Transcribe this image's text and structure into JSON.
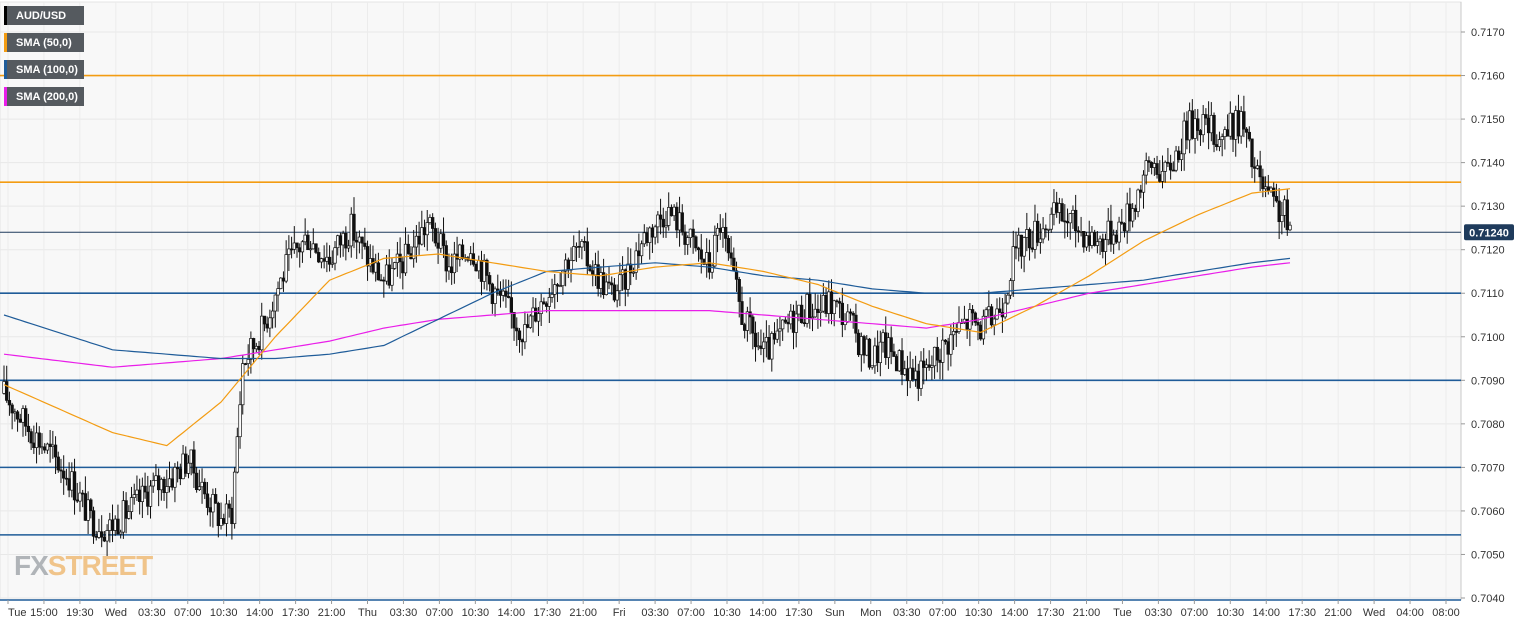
{
  "chart_data": {
    "type": "candlestick",
    "symbol": "AUD/USD",
    "legend": [
      {
        "label": "AUD/USD",
        "color": "#000000"
      },
      {
        "label": "SMA (50,0)",
        "color": "#f39c12"
      },
      {
        "label": "SMA (100,0)",
        "color": "#1f5c99"
      },
      {
        "label": "SMA (200,0)",
        "color": "#e91ee9"
      }
    ],
    "ylim": [
      0.704,
      0.7175
    ],
    "y_ticks": [
      "0.7170",
      "0.7160",
      "0.7150",
      "0.7140",
      "0.7130",
      "0.7120",
      "0.7110",
      "0.7100",
      "0.7090",
      "0.7080",
      "0.7070",
      "0.7060",
      "0.7050",
      "0.7040"
    ],
    "x_ticks": [
      "Tue",
      "15:00",
      "19:30",
      "Wed",
      "03:30",
      "07:00",
      "10:30",
      "14:00",
      "17:30",
      "21:00",
      "Thu",
      "03:30",
      "07:00",
      "10:30",
      "14:00",
      "17:30",
      "21:00",
      "Fri",
      "03:30",
      "07:00",
      "10:30",
      "14:00",
      "17:30",
      "Sun",
      "Mon",
      "03:30",
      "07:00",
      "10:30",
      "14:00",
      "17:30",
      "21:00",
      "Tue",
      "03:30",
      "07:00",
      "10:30",
      "14:00",
      "17:30",
      "21:00",
      "Wed",
      "04:00",
      "08:00"
    ],
    "last_price": "0.71240",
    "last_price_value": 0.7124,
    "levels": [
      {
        "value": 0.716,
        "color": "#f39c12"
      },
      {
        "value": 0.71355,
        "color": "#f39c12"
      },
      {
        "value": 0.711,
        "color": "#1f5c99"
      },
      {
        "value": 0.709,
        "color": "#1f5c99"
      },
      {
        "value": 0.707,
        "color": "#1f5c99"
      },
      {
        "value": 0.70545,
        "color": "#1f5c99"
      }
    ],
    "price_path": [
      [
        0,
        0.7087
      ],
      [
        8,
        0.708
      ],
      [
        16,
        0.7074
      ],
      [
        24,
        0.7068
      ],
      [
        32,
        0.7058
      ],
      [
        38,
        0.7056
      ],
      [
        46,
        0.706
      ],
      [
        54,
        0.7065
      ],
      [
        62,
        0.7068
      ],
      [
        68,
        0.7072
      ],
      [
        74,
        0.7064
      ],
      [
        80,
        0.7058
      ],
      [
        84,
        0.706
      ],
      [
        88,
        0.7094
      ],
      [
        92,
        0.7098
      ],
      [
        96,
        0.7103
      ],
      [
        100,
        0.711
      ],
      [
        104,
        0.7116
      ],
      [
        108,
        0.712
      ],
      [
        112,
        0.7123
      ],
      [
        116,
        0.712
      ],
      [
        120,
        0.7118
      ],
      [
        124,
        0.7122
      ],
      [
        128,
        0.7125
      ],
      [
        132,
        0.712
      ],
      [
        136,
        0.7116
      ],
      [
        140,
        0.7113
      ],
      [
        144,
        0.7115
      ],
      [
        148,
        0.7118
      ],
      [
        152,
        0.7122
      ],
      [
        156,
        0.7126
      ],
      [
        160,
        0.7122
      ],
      [
        164,
        0.7116
      ],
      [
        168,
        0.7118
      ],
      [
        172,
        0.7121
      ],
      [
        176,
        0.7116
      ],
      [
        180,
        0.7111
      ],
      [
        184,
        0.7108
      ],
      [
        188,
        0.7104
      ],
      [
        192,
        0.7101
      ],
      [
        196,
        0.7106
      ],
      [
        200,
        0.711
      ],
      [
        204,
        0.7114
      ],
      [
        208,
        0.7118
      ],
      [
        212,
        0.712
      ],
      [
        216,
        0.7117
      ],
      [
        220,
        0.7113
      ],
      [
        224,
        0.711
      ],
      [
        228,
        0.7112
      ],
      [
        232,
        0.7118
      ],
      [
        236,
        0.7123
      ],
      [
        240,
        0.7126
      ],
      [
        244,
        0.7129
      ],
      [
        248,
        0.7127
      ],
      [
        252,
        0.7123
      ],
      [
        256,
        0.7119
      ],
      [
        260,
        0.7116
      ],
      [
        264,
        0.7126
      ],
      [
        268,
        0.7115
      ],
      [
        272,
        0.7105
      ],
      [
        276,
        0.71
      ],
      [
        280,
        0.7096
      ],
      [
        284,
        0.7098
      ],
      [
        288,
        0.7102
      ],
      [
        292,
        0.7105
      ],
      [
        296,
        0.7107
      ],
      [
        300,
        0.7106
      ],
      [
        304,
        0.7108
      ],
      [
        308,
        0.7106
      ],
      [
        312,
        0.7103
      ],
      [
        316,
        0.7098
      ],
      [
        320,
        0.7095
      ],
      [
        324,
        0.7098
      ],
      [
        328,
        0.7096
      ],
      [
        332,
        0.7093
      ],
      [
        336,
        0.7091
      ],
      [
        340,
        0.7092
      ],
      [
        344,
        0.7096
      ],
      [
        348,
        0.7099
      ],
      [
        352,
        0.7102
      ],
      [
        356,
        0.7104
      ],
      [
        360,
        0.7102
      ],
      [
        364,
        0.7104
      ],
      [
        368,
        0.7108
      ],
      [
        372,
        0.7118
      ],
      [
        376,
        0.7122
      ],
      [
        380,
        0.7124
      ],
      [
        384,
        0.7126
      ],
      [
        388,
        0.7128
      ],
      [
        392,
        0.7127
      ],
      [
        396,
        0.7125
      ],
      [
        400,
        0.7123
      ],
      [
        404,
        0.7122
      ],
      [
        408,
        0.7124
      ],
      [
        412,
        0.7126
      ],
      [
        416,
        0.713
      ],
      [
        420,
        0.7137
      ],
      [
        424,
        0.714
      ],
      [
        428,
        0.7137
      ],
      [
        432,
        0.7142
      ],
      [
        436,
        0.7148
      ],
      [
        440,
        0.715
      ],
      [
        444,
        0.7148
      ],
      [
        448,
        0.7146
      ],
      [
        452,
        0.7148
      ],
      [
        456,
        0.715
      ],
      [
        460,
        0.714
      ],
      [
        464,
        0.7134
      ],
      [
        468,
        0.713
      ],
      [
        472,
        0.7128
      ],
      [
        474,
        0.7124
      ]
    ],
    "sma_50": [
      [
        0,
        0.7089
      ],
      [
        40,
        0.7078
      ],
      [
        60,
        0.7075
      ],
      [
        80,
        0.7085
      ],
      [
        100,
        0.71
      ],
      [
        120,
        0.7113
      ],
      [
        140,
        0.7118
      ],
      [
        160,
        0.7119
      ],
      [
        180,
        0.7117
      ],
      [
        200,
        0.7115
      ],
      [
        220,
        0.7114
      ],
      [
        240,
        0.7116
      ],
      [
        260,
        0.7117
      ],
      [
        280,
        0.7115
      ],
      [
        300,
        0.7112
      ],
      [
        320,
        0.7107
      ],
      [
        340,
        0.7103
      ],
      [
        360,
        0.7101
      ],
      [
        380,
        0.7107
      ],
      [
        400,
        0.7114
      ],
      [
        420,
        0.7122
      ],
      [
        440,
        0.7128
      ],
      [
        460,
        0.7133
      ],
      [
        474,
        0.7134
      ]
    ],
    "sma_100": [
      [
        0,
        0.7105
      ],
      [
        40,
        0.7097
      ],
      [
        60,
        0.7096
      ],
      [
        80,
        0.7095
      ],
      [
        100,
        0.7095
      ],
      [
        120,
        0.7096
      ],
      [
        140,
        0.7098
      ],
      [
        160,
        0.7104
      ],
      [
        180,
        0.711
      ],
      [
        200,
        0.7115
      ],
      [
        220,
        0.7116
      ],
      [
        240,
        0.7117
      ],
      [
        260,
        0.7116
      ],
      [
        280,
        0.7114
      ],
      [
        300,
        0.7113
      ],
      [
        320,
        0.7111
      ],
      [
        340,
        0.711
      ],
      [
        360,
        0.711
      ],
      [
        380,
        0.7111
      ],
      [
        400,
        0.7112
      ],
      [
        420,
        0.7113
      ],
      [
        440,
        0.7115
      ],
      [
        460,
        0.7117
      ],
      [
        474,
        0.7118
      ]
    ],
    "sma_200": [
      [
        0,
        0.7096
      ],
      [
        40,
        0.7093
      ],
      [
        60,
        0.7094
      ],
      [
        80,
        0.7095
      ],
      [
        100,
        0.7097
      ],
      [
        120,
        0.7099
      ],
      [
        140,
        0.7102
      ],
      [
        160,
        0.7104
      ],
      [
        180,
        0.7105
      ],
      [
        200,
        0.7106
      ],
      [
        220,
        0.7106
      ],
      [
        240,
        0.7106
      ],
      [
        260,
        0.7106
      ],
      [
        280,
        0.7105
      ],
      [
        300,
        0.7104
      ],
      [
        320,
        0.7103
      ],
      [
        340,
        0.7102
      ],
      [
        360,
        0.7104
      ],
      [
        380,
        0.7107
      ],
      [
        400,
        0.711
      ],
      [
        420,
        0.7112
      ],
      [
        440,
        0.7114
      ],
      [
        460,
        0.7116
      ],
      [
        474,
        0.7117
      ]
    ]
  },
  "watermark": {
    "part1": "FX",
    "part2": "STREET"
  }
}
